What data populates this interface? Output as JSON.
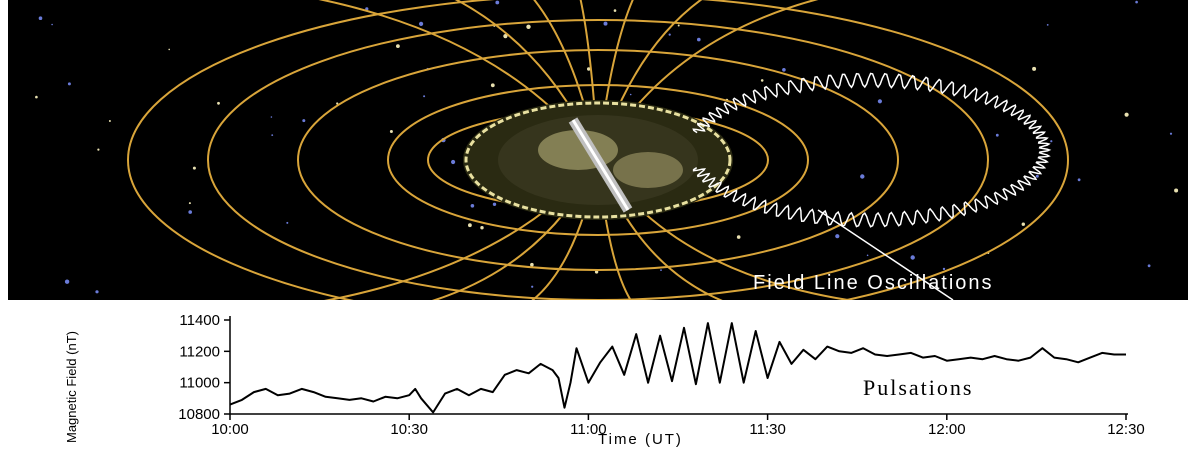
{
  "diagram": {
    "annotation": "Field Line Oscillations",
    "colors": {
      "space": "#000000",
      "field_line": "#d9a53a",
      "earth": "#e8e0a0",
      "annotation": "#ffffff"
    }
  },
  "chart_data": {
    "type": "line",
    "xlabel": "Time (UT)",
    "ylabel": "Magnetic Field (nT)",
    "annotation": "Pulsations",
    "x_ticks": [
      "10:00",
      "10:30",
      "11:00",
      "11:30",
      "12:00",
      "12:30"
    ],
    "y_ticks": [
      10800,
      11000,
      11200,
      11400
    ],
    "xlim_minutes": [
      0,
      150
    ],
    "ylim": [
      10800,
      11400
    ],
    "grid": false,
    "series": [
      {
        "color": "#000000",
        "x": [
          0,
          2,
          4,
          6,
          8,
          10,
          12,
          14,
          16,
          18,
          20,
          22,
          24,
          26,
          28,
          30,
          31,
          32,
          34,
          36,
          38,
          40,
          42,
          44,
          46,
          48,
          50,
          52,
          54,
          55,
          56,
          57,
          58,
          60,
          62,
          64,
          66,
          68,
          70,
          72,
          74,
          76,
          78,
          80,
          82,
          84,
          86,
          88,
          90,
          92,
          94,
          96,
          98,
          100,
          102,
          104,
          106,
          108,
          110,
          112,
          114,
          116,
          118,
          120,
          122,
          124,
          126,
          128,
          130,
          132,
          134,
          136,
          138,
          140,
          142,
          144,
          146,
          148,
          150
        ],
        "y": [
          10860,
          10890,
          10940,
          10960,
          10920,
          10930,
          10960,
          10940,
          10910,
          10900,
          10890,
          10900,
          10880,
          10910,
          10900,
          10920,
          10960,
          10900,
          10810,
          10930,
          10960,
          10920,
          10960,
          10940,
          11050,
          11080,
          11060,
          11120,
          11080,
          11030,
          10840,
          11000,
          11220,
          11000,
          11130,
          11230,
          11050,
          11310,
          11000,
          11300,
          11010,
          11350,
          10990,
          11380,
          11000,
          11380,
          11000,
          11330,
          11030,
          11260,
          11120,
          11210,
          11150,
          11230,
          11200,
          11190,
          11220,
          11180,
          11170,
          11180,
          11190,
          11160,
          11170,
          11140,
          11150,
          11160,
          11150,
          11170,
          11150,
          11140,
          11160,
          11220,
          11160,
          11150,
          11130,
          11160,
          11190,
          11180,
          11180
        ]
      }
    ]
  }
}
